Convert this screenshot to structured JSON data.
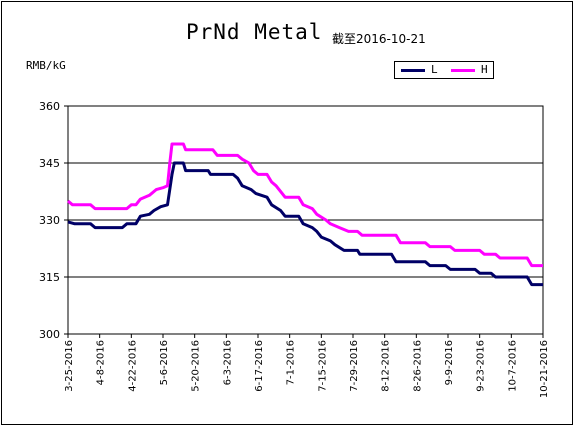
{
  "chart_data": {
    "type": "line",
    "title": "PrNd Metal",
    "subtitle": "截至2016-10-21",
    "ylabel": "RMB/kG",
    "xlabel": "",
    "ylim": [
      300,
      360
    ],
    "yticks": [
      300,
      315,
      330,
      345,
      360
    ],
    "grid": "horizontal",
    "legend_position": "top-right",
    "x_start": "2016-03-25",
    "x_end": "2016-10-21",
    "x_tick_labels": [
      "3-25-2016",
      "4-8-2016",
      "4-22-2016",
      "5-6-2016",
      "5-20-2016",
      "6-3-2016",
      "6-17-2016",
      "7-1-2016",
      "7-15-2016",
      "7-29-2016",
      "8-12-2016",
      "8-26-2016",
      "9-9-2016",
      "9-23-2016",
      "10-7-2016",
      "10-21-2016"
    ],
    "series": [
      {
        "name": "L",
        "color": "#000066",
        "points": [
          [
            "2016-03-25",
            329.5
          ],
          [
            "2016-03-28",
            329
          ],
          [
            "2016-04-04",
            329
          ],
          [
            "2016-04-06",
            328
          ],
          [
            "2016-04-18",
            328
          ],
          [
            "2016-04-20",
            329
          ],
          [
            "2016-04-24",
            329
          ],
          [
            "2016-04-26",
            331
          ],
          [
            "2016-04-30",
            331.5
          ],
          [
            "2016-05-02",
            332.5
          ],
          [
            "2016-05-05",
            333.5
          ],
          [
            "2016-05-08",
            334
          ],
          [
            "2016-05-10",
            342
          ],
          [
            "2016-05-11",
            345
          ],
          [
            "2016-05-15",
            345
          ],
          [
            "2016-05-16",
            343
          ],
          [
            "2016-05-26",
            343
          ],
          [
            "2016-05-27",
            342
          ],
          [
            "2016-06-06",
            342
          ],
          [
            "2016-06-08",
            341
          ],
          [
            "2016-06-10",
            339
          ],
          [
            "2016-06-14",
            338
          ],
          [
            "2016-06-16",
            337
          ],
          [
            "2016-06-21",
            336
          ],
          [
            "2016-06-23",
            334
          ],
          [
            "2016-06-27",
            332.5
          ],
          [
            "2016-06-29",
            331
          ],
          [
            "2016-07-05",
            331
          ],
          [
            "2016-07-07",
            329
          ],
          [
            "2016-07-11",
            328
          ],
          [
            "2016-07-13",
            327
          ],
          [
            "2016-07-15",
            325.5
          ],
          [
            "2016-07-19",
            324.5
          ],
          [
            "2016-07-21",
            323.5
          ],
          [
            "2016-07-25",
            322
          ],
          [
            "2016-07-31",
            322
          ],
          [
            "2016-08-01",
            321
          ],
          [
            "2016-08-15",
            321
          ],
          [
            "2016-08-17",
            319
          ],
          [
            "2016-08-30",
            319
          ],
          [
            "2016-09-01",
            318
          ],
          [
            "2016-09-08",
            318
          ],
          [
            "2016-09-10",
            317
          ],
          [
            "2016-09-21",
            317
          ],
          [
            "2016-09-23",
            316
          ],
          [
            "2016-09-28",
            316
          ],
          [
            "2016-09-30",
            315
          ],
          [
            "2016-10-14",
            315
          ],
          [
            "2016-10-16",
            313
          ],
          [
            "2016-10-21",
            313
          ]
        ]
      },
      {
        "name": "H",
        "color": "#ff00ff",
        "points": [
          [
            "2016-03-25",
            335
          ],
          [
            "2016-03-27",
            334
          ],
          [
            "2016-04-04",
            334
          ],
          [
            "2016-04-06",
            333
          ],
          [
            "2016-04-20",
            333
          ],
          [
            "2016-04-22",
            334
          ],
          [
            "2016-04-24",
            334
          ],
          [
            "2016-04-26",
            335.5
          ],
          [
            "2016-04-30",
            336.5
          ],
          [
            "2016-05-03",
            338
          ],
          [
            "2016-05-06",
            338.5
          ],
          [
            "2016-05-08",
            339
          ],
          [
            "2016-05-09",
            345
          ],
          [
            "2016-05-10",
            350
          ],
          [
            "2016-05-15",
            350
          ],
          [
            "2016-05-16",
            348.5
          ],
          [
            "2016-05-28",
            348.5
          ],
          [
            "2016-05-30",
            347
          ],
          [
            "2016-06-08",
            347
          ],
          [
            "2016-06-10",
            346
          ],
          [
            "2016-06-13",
            345
          ],
          [
            "2016-06-15",
            343
          ],
          [
            "2016-06-17",
            342
          ],
          [
            "2016-06-21",
            342
          ],
          [
            "2016-06-23",
            340
          ],
          [
            "2016-06-25",
            339
          ],
          [
            "2016-06-29",
            336
          ],
          [
            "2016-07-05",
            336
          ],
          [
            "2016-07-07",
            334
          ],
          [
            "2016-07-11",
            333
          ],
          [
            "2016-07-13",
            331.5
          ],
          [
            "2016-07-17",
            330
          ],
          [
            "2016-07-19",
            329
          ],
          [
            "2016-07-23",
            328
          ],
          [
            "2016-07-27",
            327
          ],
          [
            "2016-07-31",
            327
          ],
          [
            "2016-08-02",
            326
          ],
          [
            "2016-08-17",
            326
          ],
          [
            "2016-08-19",
            324
          ],
          [
            "2016-08-30",
            324
          ],
          [
            "2016-09-01",
            323
          ],
          [
            "2016-09-10",
            323
          ],
          [
            "2016-09-12",
            322
          ],
          [
            "2016-09-23",
            322
          ],
          [
            "2016-09-25",
            321
          ],
          [
            "2016-09-30",
            321
          ],
          [
            "2016-10-02",
            320
          ],
          [
            "2016-10-14",
            320
          ],
          [
            "2016-10-16",
            318
          ],
          [
            "2016-10-21",
            318
          ]
        ]
      }
    ]
  }
}
